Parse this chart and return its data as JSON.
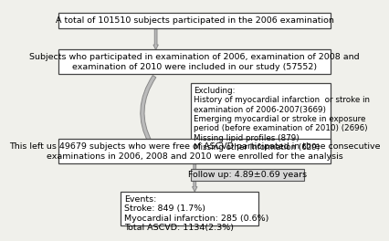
{
  "bg_color": "#f0f0eb",
  "box_facecolor": "#ffffff",
  "box_edgecolor": "#444444",
  "box1_text": "A total of 101510 subjects participated in the 2006 examination",
  "box2_text": "Subjects who participated in examination of 2006, examination of 2008 and\nexamination of 2010 were included in our study (57552)",
  "box3_text": "Excluding:\nHistory of myocardial infarction  or stroke in\nexamination of 2006-2007(3669)\nEmerging myocardial or stroke in exposure\nperiod (before examination of 2010) (2696)\nMissing lipid profiles (879)\nMissing other information (629)",
  "box4_text": "This left us 49679 subjects who were free of ASCVD participated in three consecutive\nexaminations in 2006, 2008 and 2010 were enrolled for the analysis",
  "box5_text": "Follow up: 4.89±0.69 years",
  "box6_text": "Events:\nStroke: 849 (1.7%)\nMyocardial infarction: 285 (0.6%)\nTotal ASCVD: 1134(2.3%)",
  "arrow_color": "#bbbbbb",
  "arrow_edge": "#888888",
  "fontsize": 6.8,
  "fontsize_small": 6.3
}
